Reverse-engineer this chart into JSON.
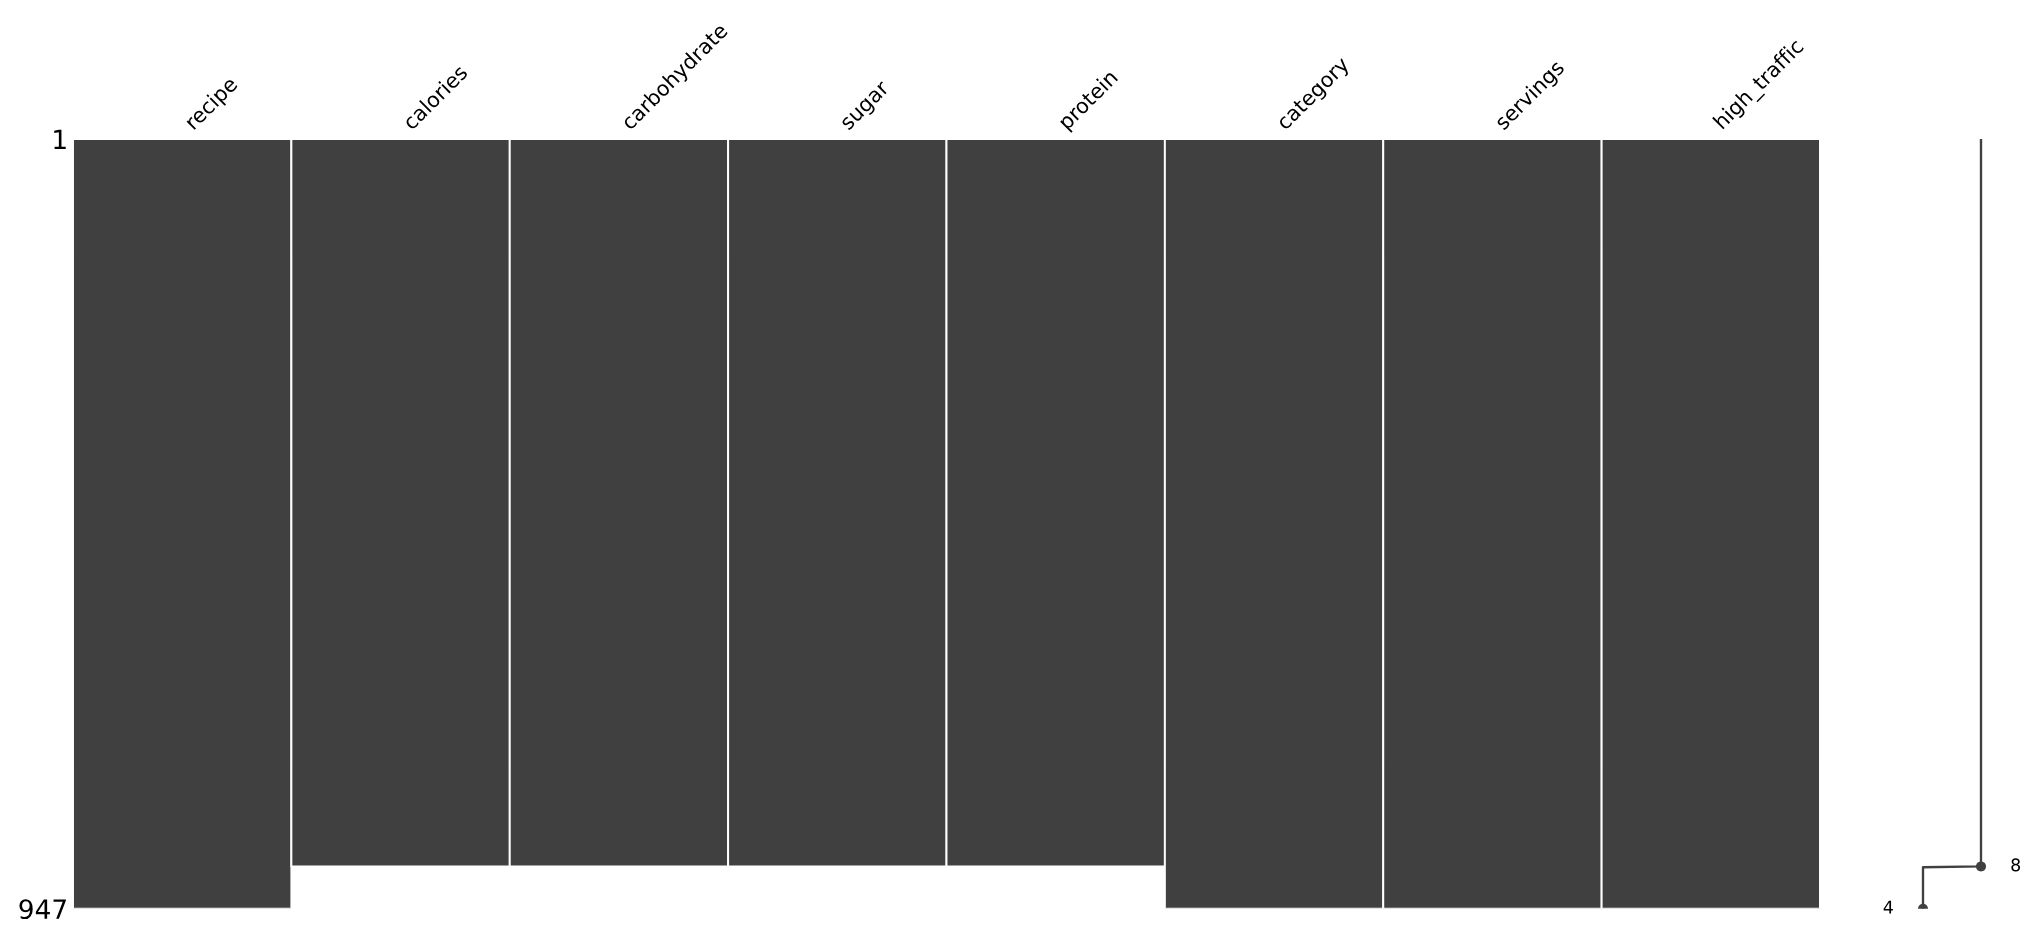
{
  "chart_data": [
    {
      "type": "bar",
      "categories": [
        "recipe",
        "calories",
        "carbohydrate",
        "sugar",
        "protein",
        "category",
        "servings",
        "high_traffic"
      ],
      "base": [
        1,
        1,
        1,
        1,
        1,
        1,
        1,
        1
      ],
      "values": [
        946,
        894,
        894,
        894,
        894,
        946,
        946,
        946
      ],
      "color": "#404040",
      "ylim": [
        947,
        1
      ],
      "yticks": [
        1,
        947
      ]
    },
    {
      "type": "line",
      "orientation": "horizontal",
      "series": [
        {
          "x": [
            1,
            895,
            896,
            947
          ],
          "values": [
            8,
            8,
            4,
            4
          ],
          "color": "#404040"
        },
        {
          "type": "scatter",
          "x": [
            895,
            947
          ],
          "values": [
            8,
            4
          ],
          "color": "#404040",
          "marker": "circle",
          "value_labels": [
            "8",
            "4"
          ]
        }
      ],
      "ylim": [
        947,
        1
      ],
      "tick_labels": false
    }
  ]
}
